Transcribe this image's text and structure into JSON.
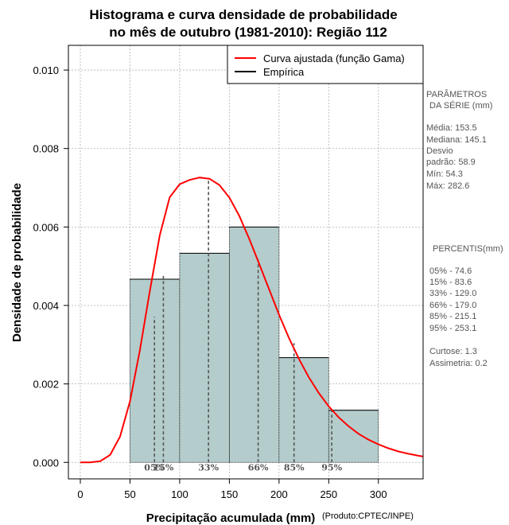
{
  "chart_data": {
    "type": "bar",
    "title_line1": "Histograma e curva densidade de probabilidade",
    "title_line2": "no mês de outubro (1981-2010): Região 112",
    "xlabel": "Precipitação acumulada (mm)",
    "ylabel": "Densidade de probabilidade",
    "credit": "(Produto:CPTEC/INPE)",
    "xlim": [
      -12,
      345
    ],
    "ylim": [
      -0.00042,
      0.01063
    ],
    "xticks": [
      0,
      50,
      100,
      150,
      200,
      250,
      300
    ],
    "xtick_labels": [
      "0",
      "50",
      "100",
      "150",
      "200",
      "250",
      "300"
    ],
    "yticks": [
      0.0,
      0.002,
      0.004,
      0.006,
      0.008,
      0.01
    ],
    "ytick_labels": [
      "0.000",
      "0.002",
      "0.004",
      "0.006",
      "0.008",
      "0.010"
    ],
    "grid": true,
    "bins": [
      {
        "start": 50,
        "end": 100,
        "density": 0.00467
      },
      {
        "start": 100,
        "end": 150,
        "density": 0.00533
      },
      {
        "start": 150,
        "end": 200,
        "density": 0.006
      },
      {
        "start": 200,
        "end": 250,
        "density": 0.00267
      },
      {
        "start": 250,
        "end": 300,
        "density": 0.00133
      }
    ],
    "fitted_curve": {
      "name": "Curva ajustada (função Gama)",
      "color": "#ff0000",
      "x": [
        0,
        10,
        20,
        30,
        40,
        50,
        60,
        70,
        80,
        90,
        100,
        110,
        120,
        130,
        140,
        150,
        160,
        170,
        180,
        190,
        200,
        210,
        220,
        230,
        240,
        250,
        260,
        270,
        280,
        290,
        300,
        310,
        320,
        330,
        340,
        345
      ],
      "y": [
        0,
        0.0,
        3e-05,
        0.00019,
        0.00066,
        0.00156,
        0.00286,
        0.00437,
        0.00579,
        0.00676,
        0.00709,
        0.0072,
        0.00726,
        0.00723,
        0.00707,
        0.00675,
        0.00628,
        0.0057,
        0.00506,
        0.00441,
        0.00376,
        0.00317,
        0.00264,
        0.00217,
        0.00177,
        0.00143,
        0.00115,
        0.00092,
        0.00073,
        0.00058,
        0.00046,
        0.00036,
        0.00028,
        0.00022,
        0.00017,
        0.00015
      ]
    },
    "empirical": {
      "name": "Empírica",
      "color": "#000000"
    },
    "bar_color": "#b4cccc",
    "percentile_markers": [
      {
        "label": "05%",
        "x": 74.6,
        "y": 0.00371
      },
      {
        "label": "15%",
        "x": 83.6,
        "y": 0.00475
      },
      {
        "label": "33%",
        "x": 129.0,
        "y": 0.00722
      },
      {
        "label": "66%",
        "x": 179.0,
        "y": 0.00518
      },
      {
        "label": "85%",
        "x": 215.1,
        "y": 0.00304
      },
      {
        "label": "95%",
        "x": 253.1,
        "y": 0.00133
      }
    ]
  },
  "series_params": {
    "title_line1": "PARÂMETROS",
    "title_line2": "DA SÉRIE (mm)",
    "lines": [
      "Média:  153.5",
      "Mediana:  145.1",
      "Desvio",
      "padrão:  58.9",
      "Mín:  54.3",
      "Máx:  282.6"
    ]
  },
  "percentiles_panel": {
    "title": "PERCENTIS(mm)",
    "lines": [
      "05% -  74.6",
      "15% -  83.6",
      "33% -  129.0",
      "66% -  179.0",
      "85% -  215.1",
      "95% -  253.1"
    ],
    "stats": [
      "Curtose:  1.3",
      "Assimetria:  0.2"
    ]
  }
}
